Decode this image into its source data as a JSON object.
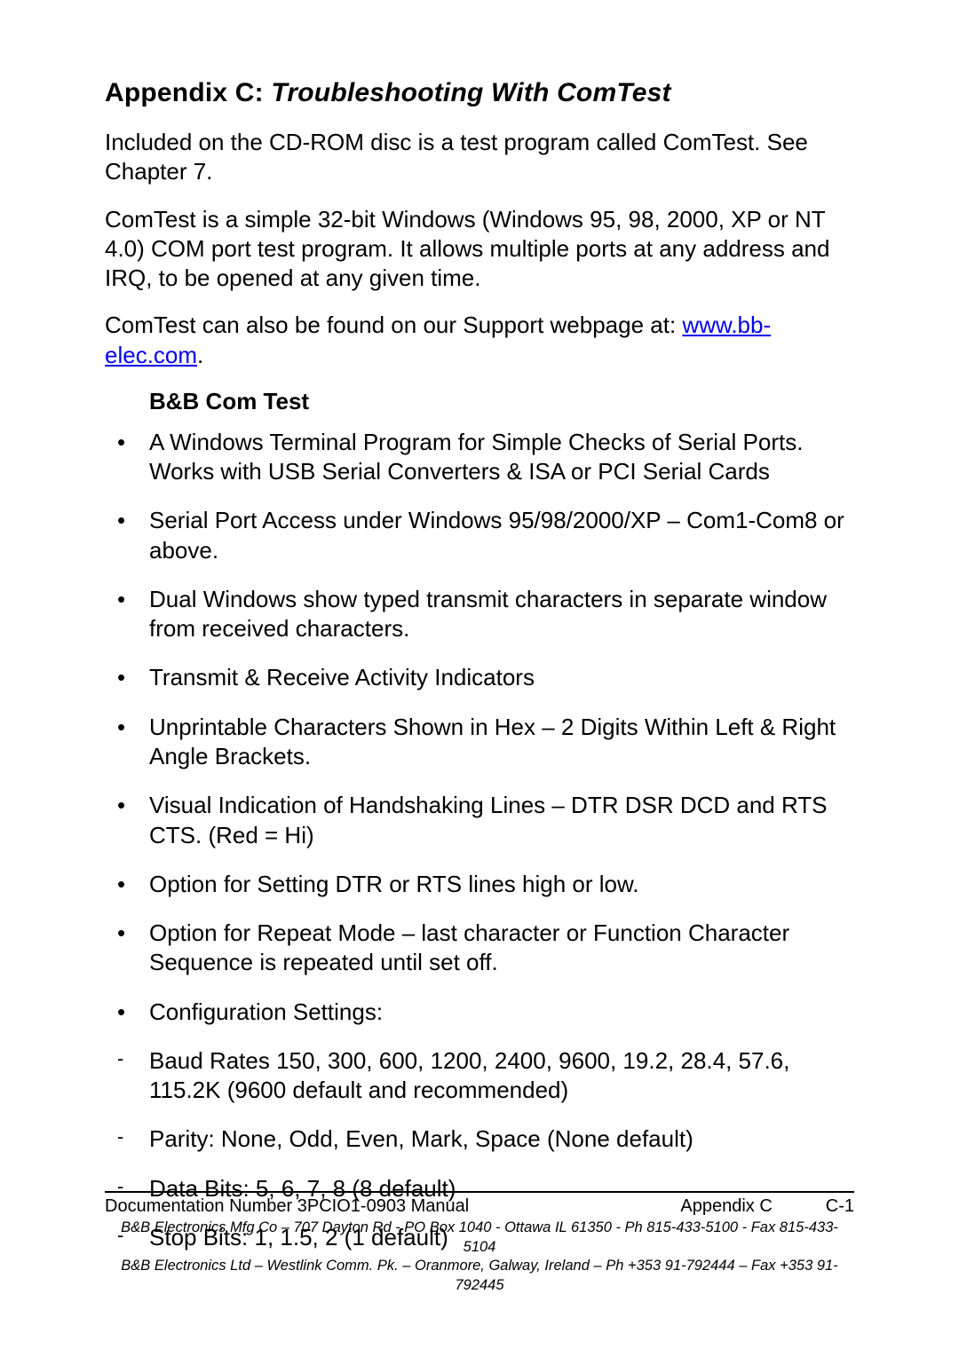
{
  "title": {
    "prefix": "Appendix C:  ",
    "italic": "Troubleshooting With ComTest"
  },
  "paragraphs": {
    "p1": "Included on the CD-ROM disc is a test program called ComTest. See Chapter 7.",
    "p2": "ComTest is a simple 32-bit Windows (Windows 95, 98, 2000, XP or NT 4.0) COM port test program. It allows multiple ports at any address and IRQ, to be opened at any given time.",
    "p3a": "ComTest can also be found on our Support webpage at: ",
    "p3link": "www.bb-elec.com",
    "p3b": "."
  },
  "subheading": "B&B Com Test",
  "bullets": [
    "A Windows Terminal Program for Simple Checks of Serial Ports. Works with USB Serial Converters & ISA or PCI Serial Cards",
    "Serial Port Access under Windows 95/98/2000/XP – Com1-Com8 or above.",
    "Dual Windows show typed transmit characters in separate window from received characters.",
    "Transmit & Receive Activity Indicators",
    "Unprintable Characters Shown in Hex – 2 Digits Within Left & Right Angle Brackets.",
    "Visual Indication of Handshaking Lines – DTR DSR DCD and RTS CTS. (Red = Hi)",
    "Option for Setting DTR or RTS lines high or low.",
    "Option for Repeat Mode – last character or Function Character Sequence is repeated until set off.",
    "Configuration Settings:"
  ],
  "dashes": [
    "Baud Rates 150, 300, 600, 1200, 2400, 9600, 19.2, 28.4, 57.6, 115.2K (9600 default and recommended)",
    "Parity: None, Odd, Even, Mark, Space (None default)",
    "Data Bits: 5, 6, 7, 8 (8 default)",
    "Stop Bits: 1, 1.5, 2 (1 default)"
  ],
  "footer": {
    "line1_left": "Documentation Number 3PCIO1-0903 Manual",
    "line1_center": "Appendix C",
    "line1_right": "C-1",
    "line2": "B&B Electronics Mfg Co – 707 Dayton Rd - PO Box 1040 - Ottawa IL 61350 - Ph 815-433-5100 - Fax 815-433-5104",
    "line3": "B&B Electronics Ltd – Westlink Comm. Pk. – Oranmore, Galway, Ireland – Ph +353 91-792444 – Fax +353 91-792445"
  }
}
